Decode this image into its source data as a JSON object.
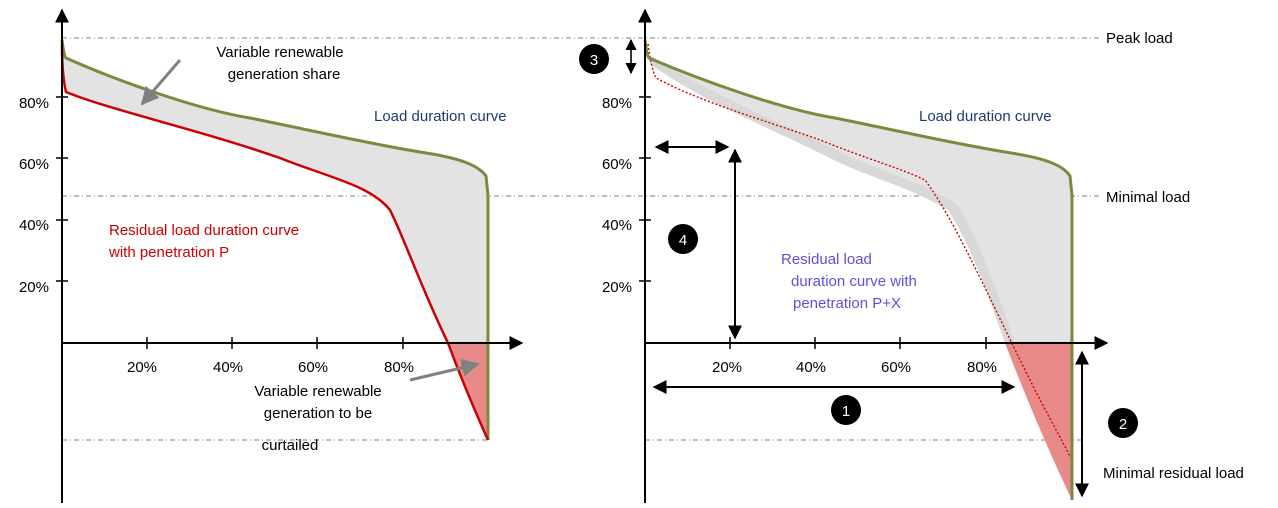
{
  "colors": {
    "load_curve": "#7a8a3e",
    "residual_curve": "#cc0000",
    "fill_gray": "#e3e3e3",
    "curtail_fill": "#e88a8a",
    "load_label": "#1f3c6e",
    "residual_label_left": "#cc0000",
    "residual_label_right": "#5c52d6",
    "axis": "#000000",
    "guide": "#555555"
  },
  "left_panel": {
    "y_ticks": [
      "80%",
      "60%",
      "40%",
      "20%"
    ],
    "x_ticks": [
      "20%",
      "40%",
      "60%",
      "80%"
    ],
    "vre_share_label": [
      "Variable renewable",
      "generation share"
    ],
    "load_curve_label": "Load duration curve",
    "residual_label": [
      "Residual load duration curve",
      "with penetration P"
    ],
    "curtail_label": [
      "Variable renewable",
      "generation to be",
      "curtailed"
    ]
  },
  "right_panel": {
    "y_ticks": [
      "80%",
      "60%",
      "40%",
      "20%"
    ],
    "x_ticks": [
      "20%",
      "40%",
      "60%",
      "80%"
    ],
    "load_curve_label": "Load duration curve",
    "residual_label": [
      "Residual load",
      "duration curve with",
      "penetration P+X"
    ],
    "markers": [
      "1",
      "2",
      "3",
      "4"
    ]
  },
  "levels": {
    "peak": "Peak load",
    "minimal": "Minimal load",
    "minimal_residual": "Minimal residual load"
  }
}
